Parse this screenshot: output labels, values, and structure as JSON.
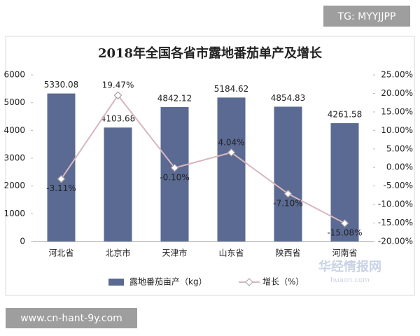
{
  "chart_data": {
    "type": "bar-line",
    "title": "2018年全国各省市露地番茄单产及增长",
    "categories": [
      "河北省",
      "北京市",
      "天津市",
      "山东省",
      "陕西省",
      "河南省"
    ],
    "series": [
      {
        "name": "露地番茄亩产（kg）",
        "type": "bar",
        "color": "#5a6a93",
        "values": [
          5330.08,
          4103.68,
          4842.12,
          5184.62,
          4854.83,
          4261.58
        ]
      },
      {
        "name": "增长（%）",
        "type": "line",
        "axis": "y2",
        "color": "#d8b7bf",
        "values": [
          -3.11,
          19.47,
          -0.1,
          4.04,
          -7.1,
          -15.08
        ],
        "value_labels": [
          "-3.11%",
          "19.47%",
          "-0.10%",
          "4.04%",
          "-7.10%",
          "-15.08%"
        ]
      }
    ],
    "ylim": [
      0,
      6000
    ],
    "yticks": [
      0,
      1000,
      2000,
      3000,
      4000,
      5000,
      6000
    ],
    "y2lim": [
      -20,
      25
    ],
    "y2ticks": [
      {
        "value": -20,
        "label": "-20.00%"
      },
      {
        "value": -15,
        "label": "-15.00%"
      },
      {
        "value": -10,
        "label": "-10.00%"
      },
      {
        "value": -5,
        "label": "-5.00%"
      },
      {
        "value": 0,
        "label": "0.00%"
      },
      {
        "value": 5,
        "label": "5.00%"
      },
      {
        "value": 10,
        "label": "10.00%"
      },
      {
        "value": 15,
        "label": "15.00%"
      },
      {
        "value": 20,
        "label": "20.00%"
      },
      {
        "value": 25,
        "label": "25.00%"
      }
    ],
    "grid": false,
    "legend": "bottom"
  },
  "overlays": {
    "badge": "TG: MYYJJPP",
    "footer": "www.cn-hant-9y.com",
    "watermark": "华经情报网",
    "watermark_url": "huaon.com"
  }
}
